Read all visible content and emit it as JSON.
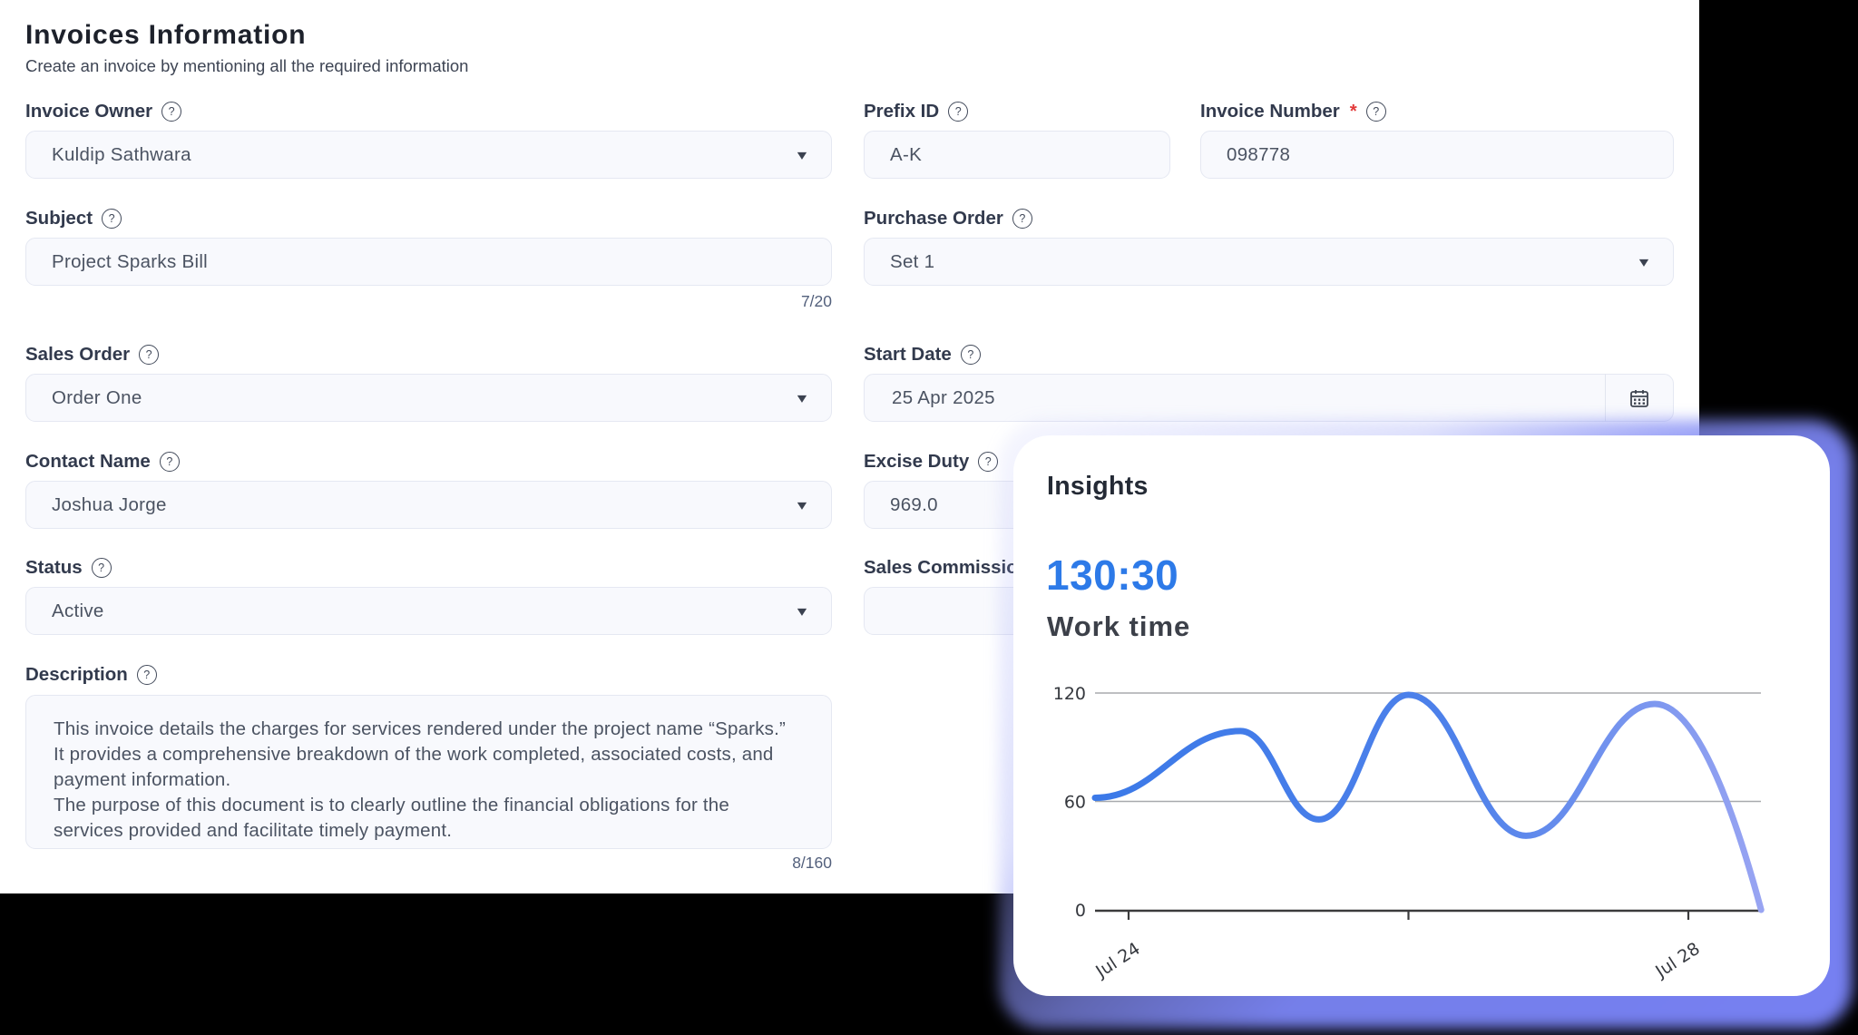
{
  "header": {
    "title": "Invoices Information",
    "subtitle": "Create an invoice by mentioning all the required information"
  },
  "icons": {
    "help_glyph": "?",
    "caret_glyph": "▾"
  },
  "form": {
    "fields": {
      "invoice_owner": {
        "label": "Invoice Owner",
        "value": "Kuldip Sathwara"
      },
      "prefix_id": {
        "label": "Prefix ID",
        "value": "A-K"
      },
      "invoice_number": {
        "label": "Invoice Number",
        "required_mark": "*",
        "value": "098778"
      },
      "subject": {
        "label": "Subject",
        "value": "Project Sparks Bill",
        "counter": "7/20"
      },
      "purchase_order": {
        "label": "Purchase Order",
        "value": "Set 1"
      },
      "sales_order": {
        "label": "Sales Order",
        "value": "Order One"
      },
      "start_date": {
        "label": "Start Date",
        "value": "25 Apr 2025"
      },
      "contact_name": {
        "label": "Contact Name",
        "value": "Joshua Jorge"
      },
      "excise_duty": {
        "label": "Excise Duty",
        "value": "969.0"
      },
      "status": {
        "label": "Status",
        "value": "Active"
      },
      "sales_commission": {
        "label": "Sales Commission"
      },
      "description": {
        "label": "Description",
        "value": "This invoice details the charges for services rendered under the project name “Sparks.”\nIt provides a comprehensive breakdown of the work completed, associated costs, and\npayment information.\nThe purpose of this document is to clearly outline the financial obligations for the\nservices provided and facilitate timely payment.",
        "counter": "8/160"
      }
    }
  },
  "insights": {
    "title": "Insights",
    "value": "130:30",
    "value_label": "Work time"
  },
  "chart_data": {
    "type": "line",
    "title": "Work time",
    "xlabel": "",
    "ylabel": "",
    "ylim": [
      0,
      120
    ],
    "yticks": [
      0,
      60,
      120
    ],
    "gridlines": [
      60,
      120
    ],
    "x_tick_labels": [
      {
        "x": 0,
        "label": "Jul 24"
      },
      {
        "x": 2,
        "label": ""
      },
      {
        "x": 4,
        "label": "Jul 28"
      }
    ],
    "points": [
      {
        "x": -0.24,
        "y": 62
      },
      {
        "x": 0.8,
        "y": 99
      },
      {
        "x": 1.36,
        "y": 50
      },
      {
        "x": 2.0,
        "y": 119
      },
      {
        "x": 2.84,
        "y": 41
      },
      {
        "x": 3.76,
        "y": 114
      },
      {
        "x": 4.52,
        "y": 0
      }
    ],
    "line_color_start": "#3b79e8",
    "line_color_end": "#98a4f2",
    "grid_color": "#a8aaad",
    "axis_color": "#3b3b3c",
    "tick_label_color": "#35383e"
  }
}
